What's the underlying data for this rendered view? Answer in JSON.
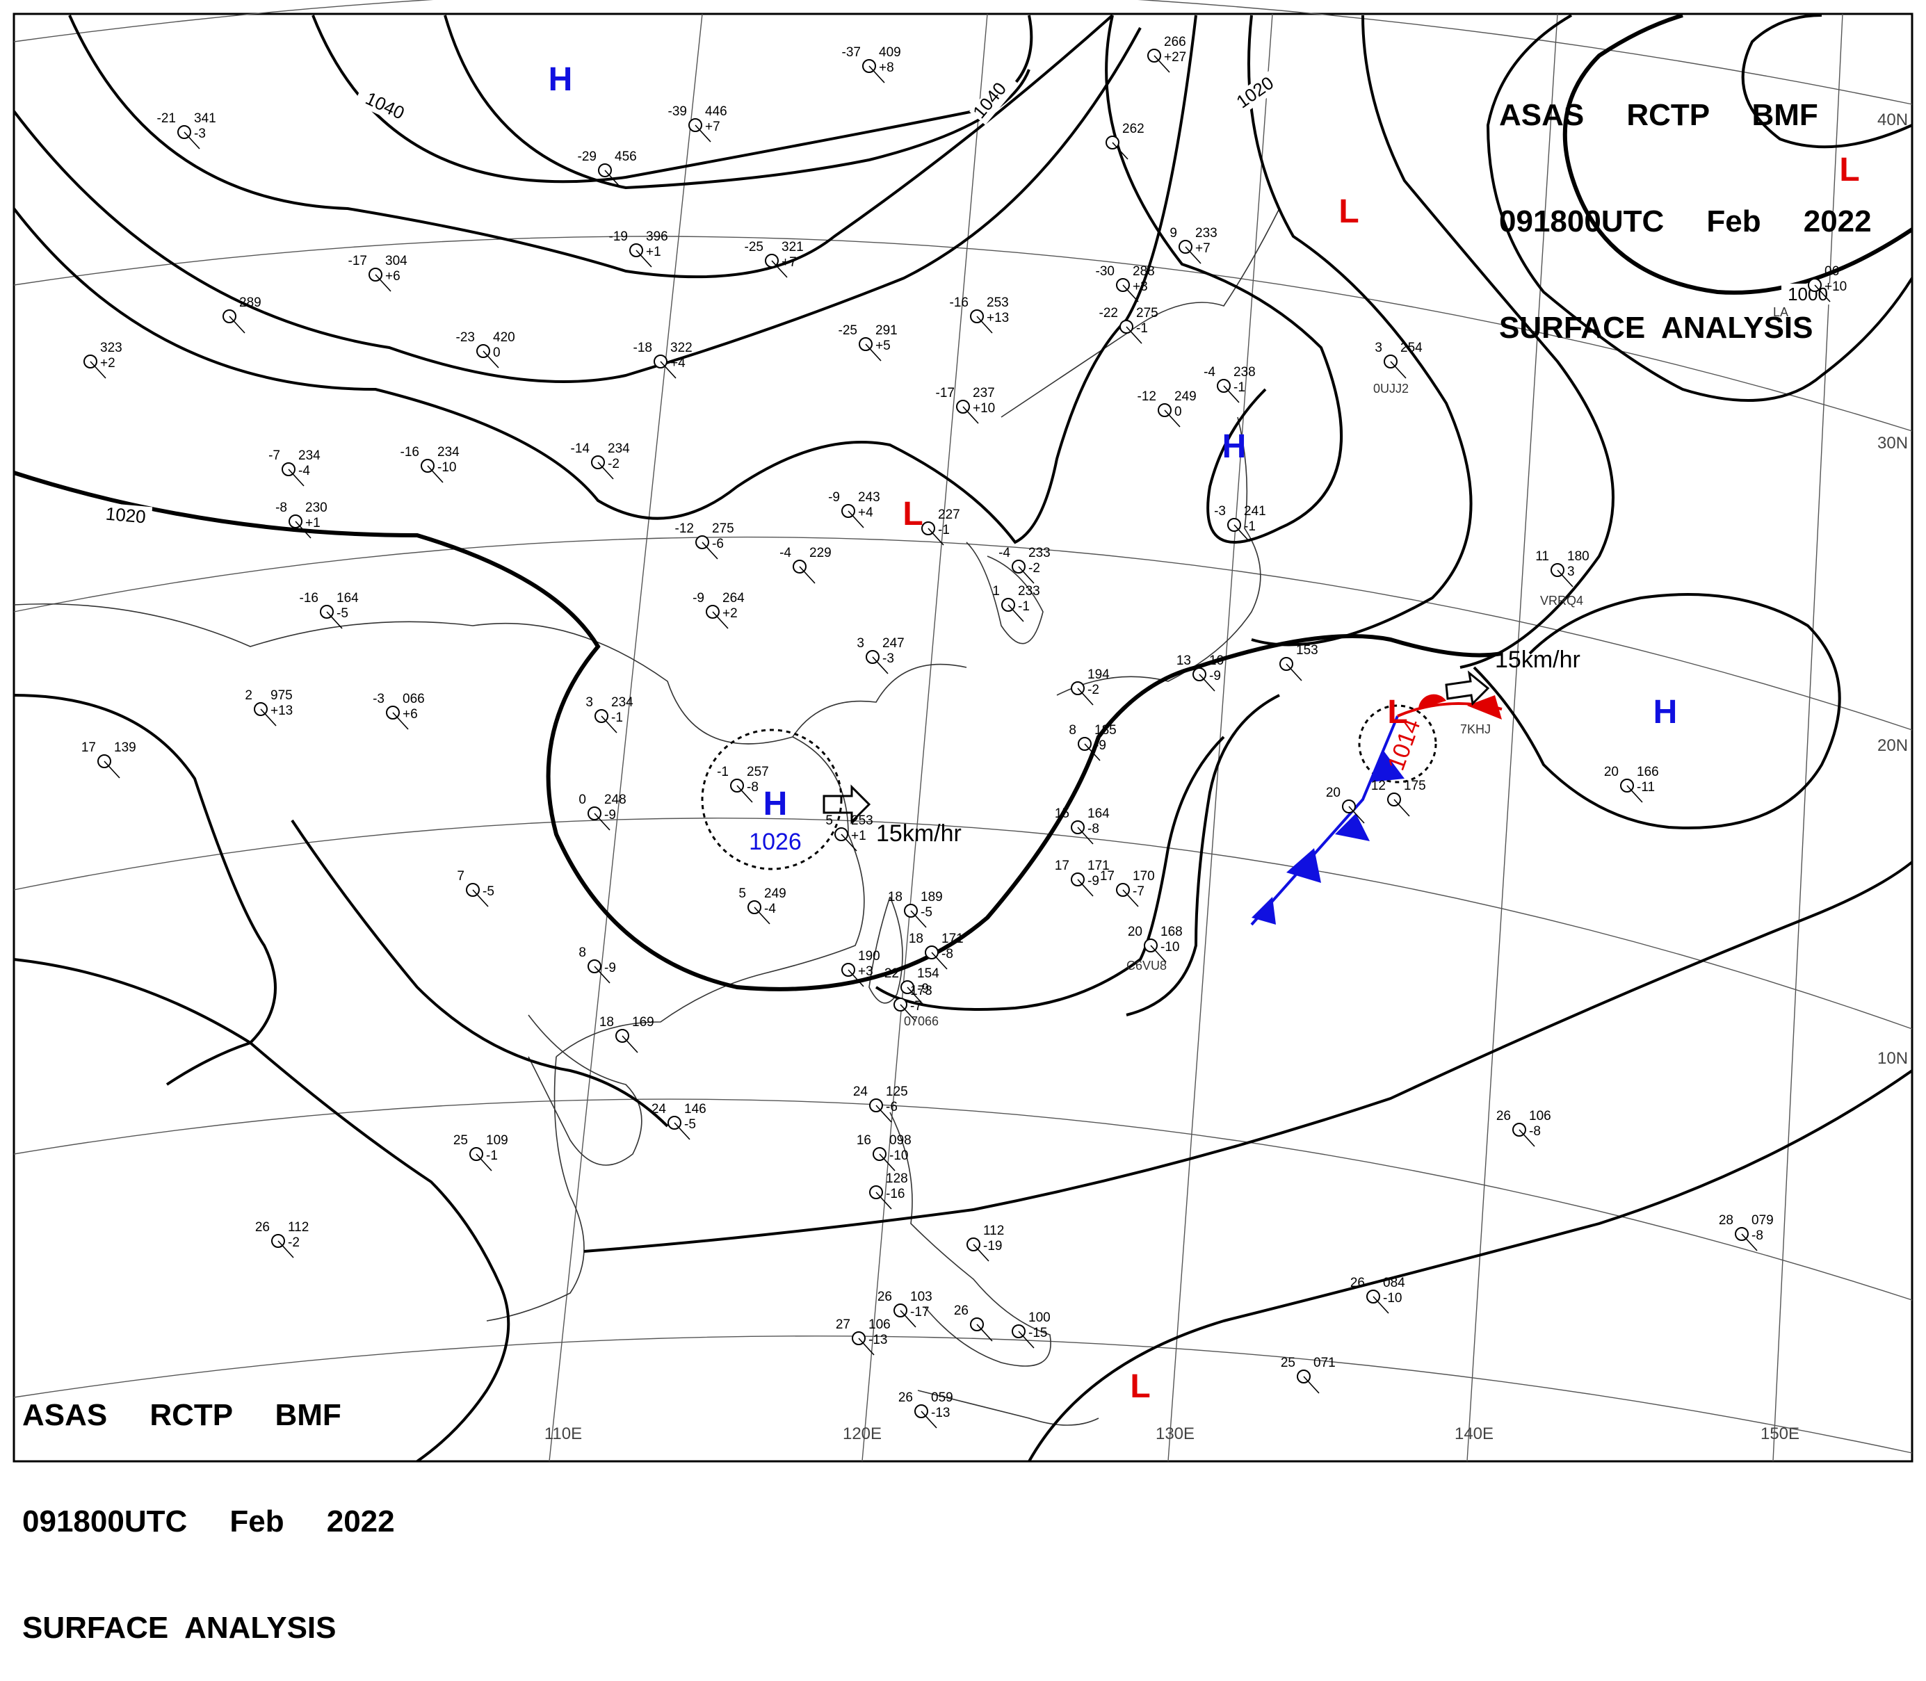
{
  "header": {
    "line1": "ASAS     RCTP     BMF",
    "line2": "091800UTC     Feb     2022",
    "line3": "SURFACE  ANALYSIS"
  },
  "footer": {
    "line1": "ASAS     RCTP     BMF",
    "line2": "091800UTC     Feb     2022",
    "line3": "SURFACE  ANALYSIS"
  },
  "colors": {
    "high": "#1010e0",
    "low": "#e00000",
    "cold_front": "#1010e0",
    "warm_front": "#e00000",
    "isobar": "#000000"
  },
  "lon_labels": [
    "110E",
    "120E",
    "130E",
    "140E",
    "150E"
  ],
  "lat_labels": [
    "40N",
    "30N",
    "20N",
    "10N"
  ],
  "isobar_labels": [
    "1040",
    "1040",
    "1020",
    "1020",
    "1000"
  ],
  "pressure_centers": [
    {
      "type": "H",
      "label": "H"
    },
    {
      "type": "H",
      "label": "H",
      "value": "1026"
    },
    {
      "type": "H",
      "label": "H"
    },
    {
      "type": "H",
      "label": "H"
    },
    {
      "type": "L",
      "label": "L"
    },
    {
      "type": "L",
      "label": "L"
    },
    {
      "type": "L",
      "label": "L"
    },
    {
      "type": "L",
      "label": "L",
      "value": "1014"
    },
    {
      "type": "L",
      "label": "L"
    }
  ],
  "motion_vectors": [
    {
      "label": "15km/hr"
    },
    {
      "label": "15km/hr"
    }
  ],
  "station_plots": [
    {
      "t": "-21",
      "p": "341",
      "c": "-3"
    },
    {
      "t": "-29",
      "p": "456",
      "c": ""
    },
    {
      "t": "-37",
      "p": "409",
      "c": "+8"
    },
    {
      "t": "-39",
      "p": "446",
      "c": "+7"
    },
    {
      "t": "-19",
      "p": "396",
      "c": "+1"
    },
    {
      "t": "-25",
      "p": "321",
      "c": "+7"
    },
    {
      "t": "-17",
      "p": "304",
      "c": "+6"
    },
    {
      "t": "",
      "p": "289",
      "c": ""
    },
    {
      "t": "",
      "p": "323",
      "c": "+2"
    },
    {
      "t": "-23",
      "p": "420",
      "c": "0"
    },
    {
      "t": "-18",
      "p": "322",
      "c": "+4"
    },
    {
      "t": "-16",
      "p": "253",
      "c": "+13"
    },
    {
      "t": "-25",
      "p": "291",
      "c": "+5"
    },
    {
      "t": "-30",
      "p": "288",
      "c": "+3"
    },
    {
      "t": "-22",
      "p": "275",
      "c": "-1"
    },
    {
      "t": "",
      "p": "262",
      "c": ""
    },
    {
      "t": "",
      "p": "266",
      "c": "+27"
    },
    {
      "t": "9",
      "p": "233",
      "c": "+7"
    },
    {
      "t": "-12",
      "p": "249",
      "c": "0"
    },
    {
      "t": "-4",
      "p": "238",
      "c": "-1"
    },
    {
      "t": "3",
      "p": "254",
      "c": ""
    },
    {
      "t": "-17",
      "p": "237",
      "c": "+10"
    },
    {
      "t": "-14",
      "p": "234",
      "c": "-2"
    },
    {
      "t": "-7",
      "p": "234",
      "c": "-4"
    },
    {
      "t": "-16",
      "p": "234",
      "c": "-10"
    },
    {
      "t": "-8",
      "p": "230",
      "c": "+1"
    },
    {
      "t": "-12",
      "p": "275",
      "c": "-6"
    },
    {
      "t": "-9",
      "p": "243",
      "c": "+4"
    },
    {
      "t": "",
      "p": "227",
      "c": "-1"
    },
    {
      "t": "-4",
      "p": "229",
      "c": ""
    },
    {
      "t": "-4",
      "p": "233",
      "c": "-2"
    },
    {
      "t": "-3",
      "p": "241",
      "c": "-1"
    },
    {
      "t": "1",
      "p": "233",
      "c": "-1"
    },
    {
      "t": "-16",
      "p": "164",
      "c": "-5"
    },
    {
      "t": "-9",
      "p": "264",
      "c": "+2"
    },
    {
      "t": "3",
      "p": "247",
      "c": "-3"
    },
    {
      "t": "11",
      "p": "180",
      "c": "3"
    },
    {
      "t": "2",
      "p": "975",
      "c": "+13"
    },
    {
      "t": "-3",
      "p": "066",
      "c": "+6"
    },
    {
      "t": "3",
      "p": "234",
      "c": "-1"
    },
    {
      "t": "17",
      "p": "139",
      "c": ""
    },
    {
      "t": "-1",
      "p": "257",
      "c": "-8"
    },
    {
      "t": "0",
      "p": "248",
      "c": "-9"
    },
    {
      "t": "5",
      "p": "253",
      "c": "+1"
    },
    {
      "t": "13",
      "p": "10",
      "c": "-9"
    },
    {
      "t": "",
      "p": "153",
      "c": ""
    },
    {
      "t": "",
      "p": "194",
      "c": "-2"
    },
    {
      "t": "8",
      "p": "185",
      "c": "-9"
    },
    {
      "t": "12",
      "p": "175",
      "c": ""
    },
    {
      "t": "20",
      "p": "166",
      "c": "-11"
    },
    {
      "t": "20",
      "p": "",
      "c": ""
    },
    {
      "t": "7",
      "p": "",
      "c": "-5"
    },
    {
      "t": "5",
      "p": "249",
      "c": "-4"
    },
    {
      "t": "15",
      "p": "164",
      "c": "-8"
    },
    {
      "t": "17",
      "p": "171",
      "c": "-9"
    },
    {
      "t": "17",
      "p": "170",
      "c": "-7"
    },
    {
      "t": "18",
      "p": "189",
      "c": "-5"
    },
    {
      "t": "18",
      "p": "171",
      "c": "-8"
    },
    {
      "t": "20",
      "p": "168",
      "c": "-10"
    },
    {
      "t": "8",
      "p": "",
      "c": "-9"
    },
    {
      "t": "",
      "p": "190",
      "c": "+3"
    },
    {
      "t": "22",
      "p": "154",
      "c": "-9"
    },
    {
      "t": "",
      "p": "173",
      "c": "-7"
    },
    {
      "t": "18",
      "p": "169",
      "c": ""
    },
    {
      "t": "24",
      "p": "146",
      "c": "-5"
    },
    {
      "t": "24",
      "p": "125",
      "c": "-6"
    },
    {
      "t": "16",
      "p": "098",
      "c": "-10"
    },
    {
      "t": "",
      "p": "128",
      "c": "-16"
    },
    {
      "t": "25",
      "p": "109",
      "c": "-1"
    },
    {
      "t": "26",
      "p": "106",
      "c": "-8"
    },
    {
      "t": "26",
      "p": "112",
      "c": "-2"
    },
    {
      "t": "28",
      "p": "079",
      "c": "-8"
    },
    {
      "t": "",
      "p": "112",
      "c": "-19"
    },
    {
      "t": "26",
      "p": "084",
      "c": "-10"
    },
    {
      "t": "26",
      "p": "103",
      "c": "-17"
    },
    {
      "t": "27",
      "p": "106",
      "c": "-13"
    },
    {
      "t": "26",
      "p": "",
      "c": ""
    },
    {
      "t": "",
      "p": "100",
      "c": "-15"
    },
    {
      "t": "25",
      "p": "071",
      "c": ""
    },
    {
      "t": "26",
      "p": "059",
      "c": "-13"
    },
    {
      "t": "",
      "p": "06",
      "c": "+10"
    }
  ],
  "ship_ids": [
    "VRRQ4",
    "0UJJ2",
    "7KHJ",
    "C6VU8",
    "07066",
    "LA"
  ]
}
